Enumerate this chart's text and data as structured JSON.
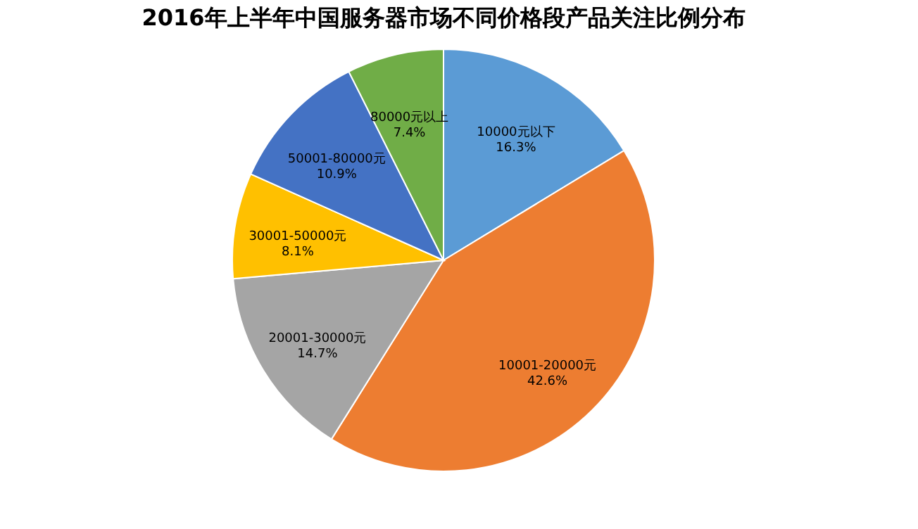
{
  "chart_data": {
    "type": "pie",
    "title": "2016年上半年中国服务器市场不同价格段产品关注比例分布",
    "categories": [
      "10000元以下",
      "10001-20000元",
      "20001-30000元",
      "30001-50000元",
      "50001-80000元",
      "80000元以上"
    ],
    "values": [
      16.3,
      42.6,
      14.7,
      8.1,
      10.9,
      7.4
    ],
    "value_labels": [
      "16.3%",
      "42.6%",
      "14.7%",
      "8.1%",
      "10.9%",
      "7.4%"
    ],
    "colors": [
      "#5b9bd5",
      "#ed7d31",
      "#a5a5a5",
      "#ffc000",
      "#4472c4",
      "#70ad47"
    ],
    "legend": false
  }
}
